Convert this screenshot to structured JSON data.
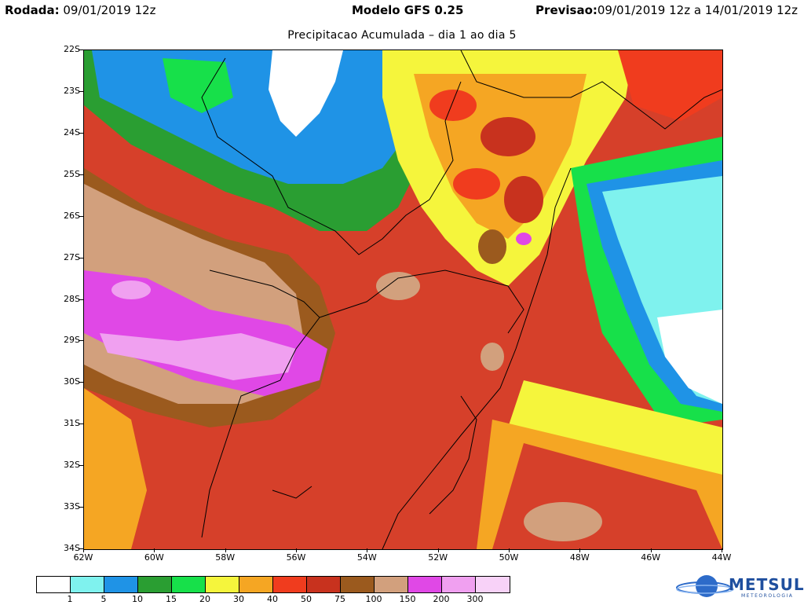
{
  "header": {
    "run_label": "Rodada:",
    "run_value": "09/01/2019 12z",
    "model_label": "Modelo GFS 0.25",
    "forecast_label": "Previsao:",
    "forecast_value": "09/01/2019 12z a 14/01/2019 12z"
  },
  "subtitle": "Precipitacao Acumulada – dia 1 ao dia 5",
  "latitudes": [
    "22S",
    "23S",
    "24S",
    "25S",
    "26S",
    "27S",
    "28S",
    "29S",
    "30S",
    "31S",
    "32S",
    "33S",
    "34S"
  ],
  "longitudes": [
    "62W",
    "60W",
    "58W",
    "56W",
    "54W",
    "52W",
    "50W",
    "48W",
    "46W",
    "44W"
  ],
  "colorbar": {
    "colors": [
      "#ffffff",
      "#7ff2ee",
      "#1f93e6",
      "#2a9e32",
      "#17e04a",
      "#f5f53c",
      "#f5a623",
      "#f03c1e",
      "#c8321e",
      "#9b5a1e",
      "#d2a07d",
      "#e048e6",
      "#f0a0f0",
      "#f8d2f8"
    ],
    "labels": [
      "1",
      "5",
      "10",
      "15",
      "20",
      "30",
      "40",
      "50",
      "75",
      "100",
      "150",
      "200",
      "300"
    ]
  },
  "logo": {
    "name": "METSUL",
    "sub": "METEOROLOGIA"
  }
}
